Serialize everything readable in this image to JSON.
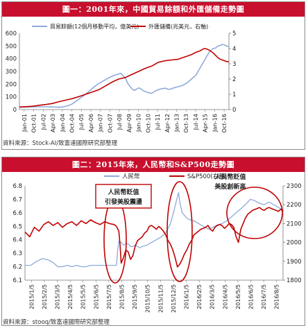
{
  "chart_data": [
    {
      "type": "line",
      "title": "圖一：2001年來，中國貿易餘額和外匯儲備走勢圖",
      "source": "資料來源：Stock-AI/致富達國際研究部整理",
      "x_ticks": [
        "Jan-01",
        "Oct-01",
        "Jul-02",
        "Apr-03",
        "Jan-04",
        "Oct-04",
        "Jul-05",
        "Apr-06",
        "Jan-07",
        "Oct-07",
        "Jul-08",
        "Apr-09",
        "Jan-10",
        "Oct-10",
        "Jul-11",
        "Apr-12",
        "Jan-13",
        "Oct-13",
        "Jul-14",
        "Apr-15",
        "Jan-16",
        "Oct-16"
      ],
      "y_left": {
        "ticks": [
          "0",
          "100",
          "200",
          "300",
          "400",
          "500",
          "600"
        ],
        "lim": [
          0,
          600
        ]
      },
      "y_right": {
        "ticks": [
          "0",
          "1",
          "2",
          "3",
          "4",
          "5"
        ],
        "lim": [
          0,
          5
        ]
      },
      "series": [
        {
          "name": "貿易餘額(12個月移動平均，億美元)",
          "axis": "left",
          "color": "#8eaadb",
          "points": [
            [
              0,
              18
            ],
            [
              8,
              20
            ],
            [
              16,
              22
            ],
            [
              24,
              22
            ],
            [
              32,
              20
            ],
            [
              36,
              18
            ],
            [
              40,
              22
            ],
            [
              44,
              30
            ],
            [
              48,
              45
            ],
            [
              52,
              70
            ],
            [
              56,
              95
            ],
            [
              60,
              120
            ],
            [
              64,
              150
            ],
            [
              68,
              180
            ],
            [
              72,
              205
            ],
            [
              76,
              225
            ],
            [
              80,
              245
            ],
            [
              84,
              262
            ],
            [
              88,
              275
            ],
            [
              92,
              285
            ],
            [
              96,
              250
            ],
            [
              98,
              210
            ],
            [
              100,
              185
            ],
            [
              102,
              165
            ],
            [
              104,
              150
            ],
            [
              106,
              160
            ],
            [
              108,
              170
            ],
            [
              110,
              165
            ],
            [
              112,
              150
            ],
            [
              116,
              135
            ],
            [
              120,
              128
            ],
            [
              124,
              150
            ],
            [
              128,
              162
            ],
            [
              132,
              168
            ],
            [
              136,
              158
            ],
            [
              140,
              170
            ],
            [
              144,
              180
            ],
            [
              148,
              190
            ],
            [
              152,
              210
            ],
            [
              156,
              240
            ],
            [
              160,
              270
            ],
            [
              162,
              300
            ],
            [
              164,
              330
            ],
            [
              166,
              360
            ],
            [
              168,
              390
            ],
            [
              170,
              420
            ],
            [
              172,
              450
            ],
            [
              174,
              470
            ],
            [
              176,
              480
            ],
            [
              178,
              485
            ],
            [
              180,
              500
            ],
            [
              182,
              505
            ],
            [
              184,
              512
            ],
            [
              186,
              508
            ],
            [
              188,
              500
            ],
            [
              190,
              495
            ]
          ]
        },
        {
          "name": "外匯儲備(兆美元，右軸)",
          "axis": "right",
          "color": "#c00000",
          "points": [
            [
              0,
              0.17
            ],
            [
              6,
              0.19
            ],
            [
              12,
              0.22
            ],
            [
              18,
              0.28
            ],
            [
              24,
              0.33
            ],
            [
              30,
              0.4
            ],
            [
              36,
              0.52
            ],
            [
              42,
              0.62
            ],
            [
              48,
              0.72
            ],
            [
              54,
              0.85
            ],
            [
              60,
              1.0
            ],
            [
              66,
              1.15
            ],
            [
              72,
              1.3
            ],
            [
              78,
              1.55
            ],
            [
              84,
              1.8
            ],
            [
              90,
              2.0
            ],
            [
              96,
              2.1
            ],
            [
              102,
              2.3
            ],
            [
              108,
              2.5
            ],
            [
              114,
              2.7
            ],
            [
              120,
              2.85
            ],
            [
              126,
              3.1
            ],
            [
              132,
              3.2
            ],
            [
              138,
              3.25
            ],
            [
              144,
              3.3
            ],
            [
              150,
              3.45
            ],
            [
              156,
              3.6
            ],
            [
              160,
              3.75
            ],
            [
              164,
              3.85
            ],
            [
              166,
              3.95
            ],
            [
              168,
              4.0
            ],
            [
              170,
              3.97
            ],
            [
              172,
              3.9
            ],
            [
              174,
              3.8
            ],
            [
              176,
              3.7
            ],
            [
              178,
              3.55
            ],
            [
              180,
              3.4
            ],
            [
              182,
              3.3
            ],
            [
              184,
              3.25
            ],
            [
              186,
              3.2
            ],
            [
              188,
              3.15
            ],
            [
              190,
              3.12
            ]
          ]
        }
      ]
    },
    {
      "type": "line",
      "title": "圖二：2015年來，人民幣和S&P500走勢圖",
      "source": "資料來源：stooq/致富達國際研究部整理",
      "x_ticks": [
        "2015/1/5",
        "2015/2/5",
        "2015/3/5",
        "2015/4/5",
        "2015/5/5",
        "2015/6/5",
        "2015/7/5",
        "2015/8/5",
        "2015/9/5",
        "2015/10/5",
        "2015/11/5",
        "2015/12/5",
        "2016/1/5",
        "2016/2/5",
        "2016/3/5",
        "2016/4/5",
        "2016/5/5",
        "2016/6/5",
        "2016/7/5",
        "2016/8/5"
      ],
      "y_left": {
        "ticks": [
          "6.1",
          "6.2",
          "6.3",
          "6.4",
          "6.5",
          "6.6",
          "6.7",
          "6.8"
        ],
        "lim": [
          6.1,
          6.8
        ]
      },
      "y_right": {
        "ticks": [
          "1800",
          "1900",
          "2000",
          "2100",
          "2200",
          "2300"
        ],
        "lim": [
          1800,
          2300
        ]
      },
      "annotations": [
        {
          "text": [
            "人民幣貶值",
            "引發美股震盪"
          ],
          "type": "label"
        },
        {
          "text": [
            "人民幣貶值",
            "美股創新高"
          ],
          "type": "label"
        }
      ],
      "series": [
        {
          "name": "人民幣",
          "axis": "left",
          "color": "#8eaadb",
          "points": [
            [
              0,
              6.21
            ],
            [
              5,
              6.21
            ],
            [
              10,
              6.24
            ],
            [
              15,
              6.26
            ],
            [
              20,
              6.25
            ],
            [
              24,
              6.23
            ],
            [
              28,
              6.2
            ],
            [
              32,
              6.2
            ],
            [
              36,
              6.21
            ],
            [
              40,
              6.2
            ],
            [
              44,
              6.21
            ],
            [
              48,
              6.2
            ],
            [
              52,
              6.2
            ],
            [
              56,
              6.21
            ],
            [
              60,
              6.21
            ],
            [
              64,
              6.21
            ],
            [
              68,
              6.21
            ],
            [
              72,
              6.21
            ],
            [
              76,
              6.21
            ],
            [
              78,
              6.21
            ],
            [
              79,
              6.32
            ],
            [
              80,
              6.39
            ],
            [
              82,
              6.38
            ],
            [
              84,
              6.36
            ],
            [
              86,
              6.37
            ],
            [
              88,
              6.37
            ],
            [
              90,
              6.35
            ],
            [
              92,
              6.35
            ],
            [
              94,
              6.36
            ],
            [
              96,
              6.35
            ],
            [
              98,
              6.34
            ],
            [
              100,
              6.35
            ],
            [
              104,
              6.36
            ],
            [
              108,
              6.38
            ],
            [
              112,
              6.4
            ],
            [
              116,
              6.42
            ],
            [
              120,
              6.45
            ],
            [
              124,
              6.52
            ],
            [
              126,
              6.58
            ],
            [
              128,
              6.65
            ],
            [
              130,
              6.72
            ],
            [
              131,
              6.75
            ],
            [
              132,
              6.68
            ],
            [
              134,
              6.6
            ],
            [
              136,
              6.58
            ],
            [
              138,
              6.56
            ],
            [
              140,
              6.55
            ],
            [
              144,
              6.54
            ],
            [
              148,
              6.52
            ],
            [
              152,
              6.5
            ],
            [
              156,
              6.48
            ],
            [
              160,
              6.49
            ],
            [
              164,
              6.51
            ],
            [
              168,
              6.52
            ],
            [
              172,
              6.54
            ],
            [
              176,
              6.57
            ],
            [
              180,
              6.6
            ],
            [
              184,
              6.63
            ],
            [
              188,
              6.66
            ],
            [
              192,
              6.7
            ],
            [
              196,
              6.69
            ],
            [
              200,
              6.67
            ],
            [
              204,
              6.66
            ],
            [
              208,
              6.68
            ],
            [
              212,
              6.66
            ],
            [
              216,
              6.64
            ],
            [
              220,
              6.62
            ]
          ]
        },
        {
          "name": "S&P500(右軸)",
          "axis": "right",
          "color": "#c00000",
          "points": [
            [
              0,
              2055
            ],
            [
              4,
              2030
            ],
            [
              8,
              2080
            ],
            [
              12,
              2060
            ],
            [
              16,
              2095
            ],
            [
              20,
              2110
            ],
            [
              24,
              2090
            ],
            [
              28,
              2105
            ],
            [
              32,
              2080
            ],
            [
              36,
              2100
            ],
            [
              40,
              2110
            ],
            [
              44,
              2090
            ],
            [
              48,
              2115
            ],
            [
              52,
              2100
            ],
            [
              56,
              2120
            ],
            [
              60,
              2105
            ],
            [
              64,
              2095
            ],
            [
              68,
              2110
            ],
            [
              72,
              2100
            ],
            [
              76,
              2095
            ],
            [
              78,
              2085
            ],
            [
              80,
              2060
            ],
            [
              81,
              1990
            ],
            [
              82,
              1890
            ],
            [
              84,
              1920
            ],
            [
              86,
              1960
            ],
            [
              88,
              1950
            ],
            [
              90,
              1910
            ],
            [
              92,
              1930
            ],
            [
              94,
              1980
            ],
            [
              96,
              2010
            ],
            [
              98,
              2020
            ],
            [
              100,
              2030
            ],
            [
              102,
              2050
            ],
            [
              104,
              2060
            ],
            [
              106,
              2085
            ],
            [
              108,
              2090
            ],
            [
              110,
              2080
            ],
            [
              112,
              2070
            ],
            [
              114,
              2085
            ],
            [
              116,
              2075
            ],
            [
              118,
              2060
            ],
            [
              120,
              2040
            ],
            [
              122,
              2010
            ],
            [
              124,
              1990
            ],
            [
              126,
              1960
            ],
            [
              128,
              1920
            ],
            [
              130,
              1870
            ],
            [
              132,
              1885
            ],
            [
              134,
              1910
            ],
            [
              136,
              1940
            ],
            [
              138,
              1960
            ],
            [
              140,
              1990
            ],
            [
              142,
              2010
            ],
            [
              144,
              2040
            ],
            [
              146,
              2050
            ],
            [
              148,
              2060
            ],
            [
              150,
              2070
            ],
            [
              152,
              2075
            ],
            [
              154,
              2080
            ],
            [
              156,
              2090
            ],
            [
              158,
              2070
            ],
            [
              160,
              2060
            ],
            [
              162,
              2080
            ],
            [
              164,
              2090
            ],
            [
              166,
              2095
            ],
            [
              168,
              2090
            ],
            [
              170,
              2075
            ],
            [
              172,
              2085
            ],
            [
              174,
              2100
            ],
            [
              176,
              2095
            ],
            [
              178,
              2080
            ],
            [
              180,
              2030
            ],
            [
              182,
              2000
            ],
            [
              184,
              2070
            ],
            [
              186,
              2100
            ],
            [
              188,
              2130
            ],
            [
              190,
              2150
            ],
            [
              192,
              2160
            ],
            [
              194,
              2170
            ],
            [
              196,
              2175
            ],
            [
              198,
              2180
            ],
            [
              200,
              2185
            ],
            [
              202,
              2175
            ],
            [
              204,
              2170
            ],
            [
              206,
              2180
            ],
            [
              208,
              2185
            ],
            [
              210,
              2180
            ],
            [
              212,
              2175
            ],
            [
              214,
              2170
            ],
            [
              216,
              2165
            ],
            [
              218,
              2175
            ],
            [
              220,
              2168
            ]
          ]
        }
      ]
    }
  ]
}
